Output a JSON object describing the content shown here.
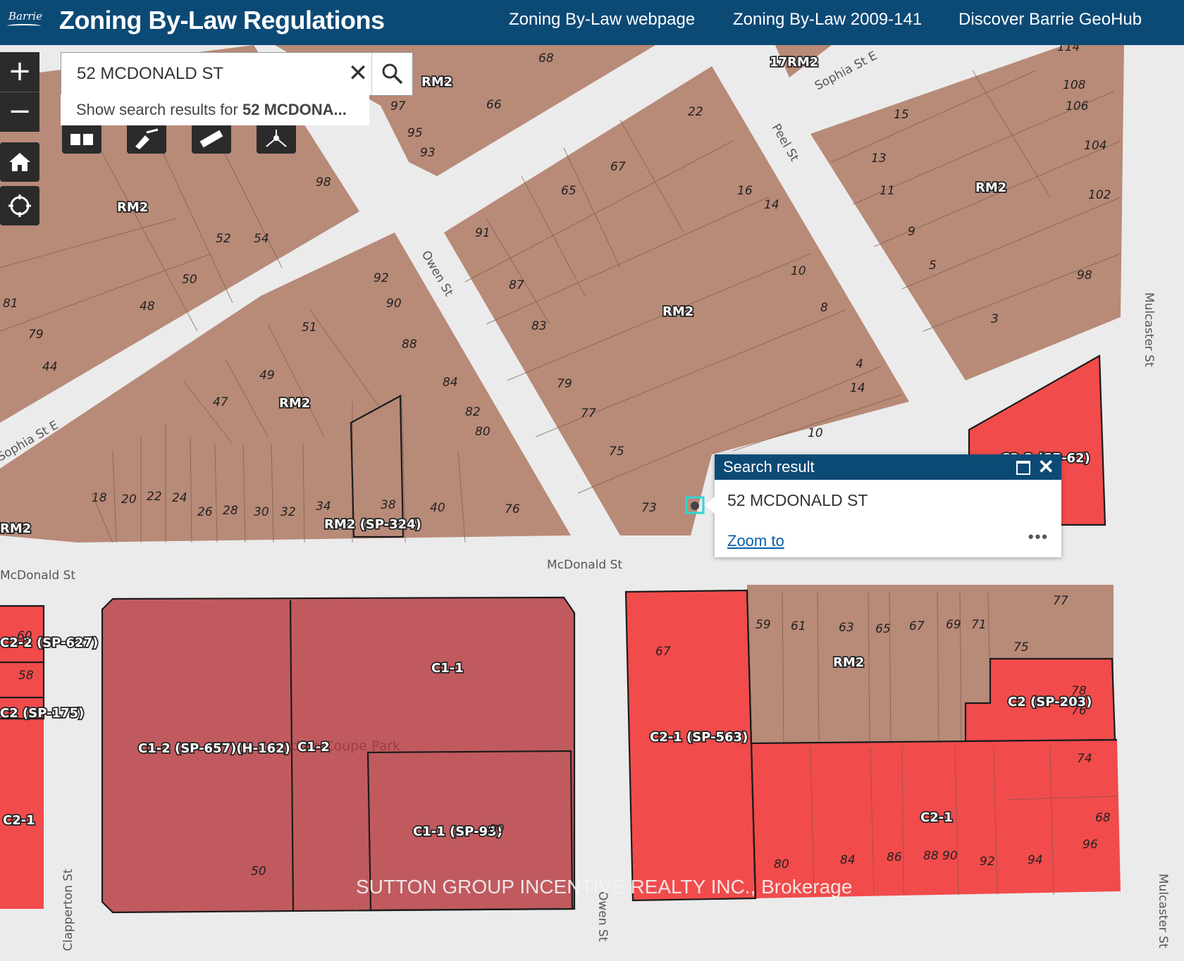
{
  "header": {
    "logo_text": "Barrie",
    "title": "Zoning By-Law Regulations",
    "links": [
      "Zoning By-Law webpage",
      "Zoning By-Law 2009-141",
      "Discover Barrie GeoHub"
    ]
  },
  "search": {
    "value": "52 MCDONALD ST",
    "suggestion_prefix": "Show search results for ",
    "suggestion_bold": "52 MCDONA..."
  },
  "popup": {
    "title": "Search result",
    "address": "52 MCDONALD ST",
    "zoom_label": "Zoom to",
    "more_label": "•••"
  },
  "map": {
    "colors": {
      "residential": "#b88a78",
      "commercial_c1": "#c05a5e",
      "commercial_c2": "#f24b4b",
      "road": "#ebebeb",
      "lot_line": "#7a5a4e"
    },
    "streets": [
      "Sophia St E",
      "Peel St",
      "Owen St",
      "Mulcaster St",
      "McDonald St",
      "Clapperton St"
    ],
    "zones": [
      "RM2",
      "RM2 (SP-324)",
      "C1-1",
      "C1-2 (SP-657)(H-162)",
      "C1-2",
      "C1-1 (SP-93)",
      "C2-1 (SP-563)",
      "C2 (SP-203)",
      "C2-1",
      "C2-2 (SP-627)",
      "C2 (SP-175)",
      "17RM2",
      "RM2",
      "C2-2 (SP-62)"
    ],
    "lot_numbers": [
      "68",
      "66",
      "97",
      "95",
      "93",
      "98",
      "52",
      "54",
      "50",
      "48",
      "81",
      "79",
      "44",
      "92",
      "90",
      "51",
      "88",
      "49",
      "47",
      "84",
      "82",
      "80",
      "18",
      "20",
      "22",
      "24",
      "26",
      "28",
      "30",
      "32",
      "34",
      "38",
      "40",
      "76",
      "22",
      "67",
      "65",
      "91",
      "87",
      "83",
      "79",
      "77",
      "75",
      "73",
      "16",
      "14",
      "10",
      "8",
      "4",
      "14",
      "10",
      "15",
      "13",
      "11",
      "9",
      "5",
      "3",
      "108",
      "106",
      "104",
      "102",
      "98",
      "114",
      "60",
      "58",
      "59",
      "61",
      "63",
      "65",
      "67",
      "69",
      "71",
      "77",
      "75",
      "78",
      "76",
      "67",
      "74",
      "68",
      "96",
      "80",
      "84",
      "86",
      "88 90",
      "92",
      "94",
      "50",
      "90"
    ],
    "park_label": "Meridian Coupe Park",
    "watermark": "SUTTON GROUP INCENTIVE REALTY INC., Brokerage"
  }
}
